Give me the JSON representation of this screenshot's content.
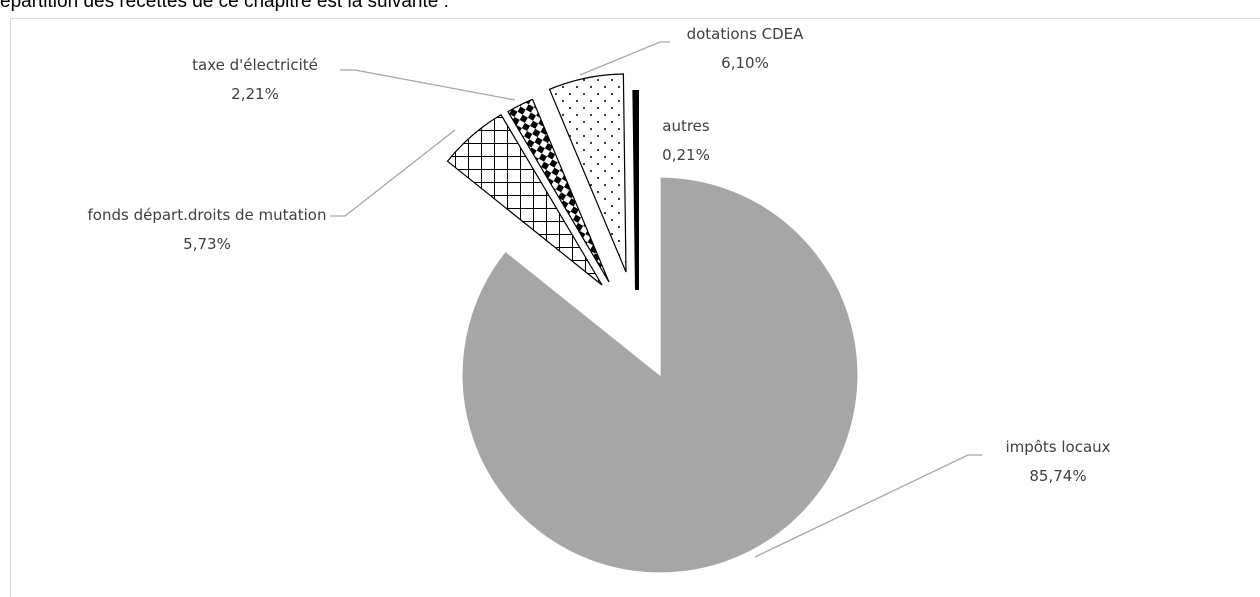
{
  "page_text": "épartition des recettes de ce chapitre est la suivante :",
  "chart_data": {
    "type": "pie",
    "categories": [
      "impôts locaux",
      "fonds départ.droits de mutation",
      "taxe d'électricité",
      "dotations CDEA",
      "autres"
    ],
    "values": [
      85.74,
      5.73,
      2.21,
      6.1,
      0.21
    ],
    "value_labels": [
      "85,74%",
      "5,73%",
      "2,21%",
      "6,10%",
      "0,21%"
    ],
    "colors": [
      "#a6a6a6",
      "url(#pat-grid)",
      "url(#pat-checker)",
      "url(#pat-dots)",
      "#000000"
    ]
  }
}
